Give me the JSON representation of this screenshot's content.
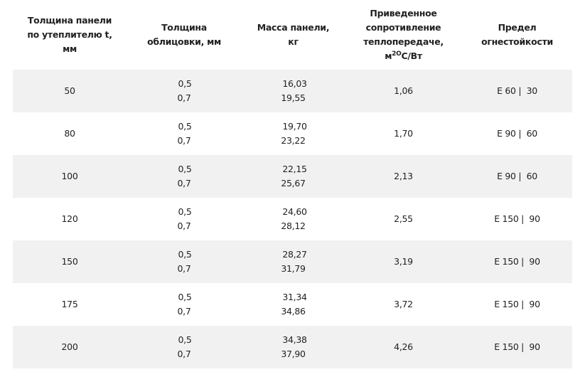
{
  "headers": {
    "thickness": [
      "Толщина панели",
      "по утеплителю t,",
      "мм"
    ],
    "cladding": [
      "Толщина",
      "облицовки, мм"
    ],
    "mass": [
      "Масса панели,",
      "кг"
    ],
    "resistance": [
      "Приведенное",
      "сопротивление",
      "теплопередаче,",
      "м",
      "2О",
      "С/Вт"
    ],
    "fire": [
      "Предел",
      "огнестойкости"
    ]
  },
  "rows": [
    {
      "t": "50",
      "c1": "0,5",
      "c2": "0,7",
      "m1": "16,03",
      "m2": "19,55",
      "r": "1,06",
      "f": "E 60 |  30"
    },
    {
      "t": "80",
      "c1": "0,5",
      "c2": "0,7",
      "m1": "19,70",
      "m2": "23,22",
      "r": "1,70",
      "f": "E 90 |  60"
    },
    {
      "t": "100",
      "c1": "0,5",
      "c2": "0,7",
      "m1": "22,15",
      "m2": "25,67",
      "r": "2,13",
      "f": "E 90 |  60"
    },
    {
      "t": "120",
      "c1": "0,5",
      "c2": "0,7",
      "m1": "24,60",
      "m2": "28,12",
      "r": "2,55",
      "f": "E 150 |  90"
    },
    {
      "t": "150",
      "c1": "0,5",
      "c2": "0,7",
      "m1": "28,27",
      "m2": "31,79",
      "r": "3,19",
      "f": "E 150 |  90"
    },
    {
      "t": "175",
      "c1": "0,5",
      "c2": "0,7",
      "m1": "31,34",
      "m2": "34,86",
      "r": "3,72",
      "f": "E 150 |  90"
    },
    {
      "t": "200",
      "c1": "0,5",
      "c2": "0,7",
      "m1": "34,38",
      "m2": "37,90",
      "r": "4,26",
      "f": "E 150 |  90"
    }
  ]
}
